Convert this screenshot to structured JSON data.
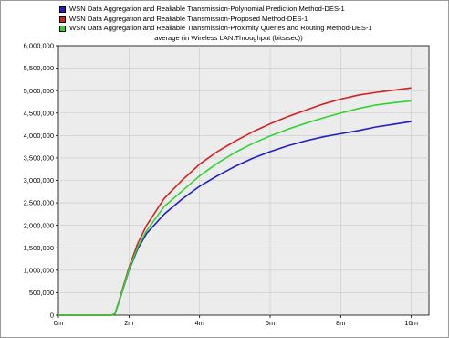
{
  "chart_data": {
    "type": "line",
    "title": "average (in Wireless LAN.Throughput (bits/sec))",
    "xlabel": "",
    "ylabel": "",
    "x_ticks": [
      "0m",
      "2m",
      "4m",
      "6m",
      "8m",
      "10m"
    ],
    "y_ticks": [
      "0",
      "500,000",
      "1,000,000",
      "1,500,000",
      "2,000,000",
      "2,500,000",
      "3,000,000",
      "3,500,000",
      "4,000,000",
      "4,500,000",
      "5,000,000",
      "5,500,000",
      "6,000,000"
    ],
    "xlim": [
      0,
      10.5
    ],
    "ylim": [
      0,
      6000000
    ],
    "grid": true,
    "legend_position": "top",
    "x": [
      0,
      1,
      1.5,
      1.6,
      1.7,
      1.8,
      2,
      2.25,
      2.5,
      3,
      3.5,
      4,
      4.5,
      5,
      5.5,
      6,
      6.5,
      7,
      7.5,
      8,
      8.5,
      9,
      9.5,
      10
    ],
    "series": [
      {
        "name": "WSN Data Aggregation and Realiable Transmission-Polynomial Prediction Method-DES-1",
        "color": "#1f1fc8",
        "values": [
          0,
          0,
          0,
          30000,
          250000,
          500000,
          1000000,
          1480000,
          1820000,
          2250000,
          2580000,
          2870000,
          3100000,
          3310000,
          3490000,
          3640000,
          3770000,
          3880000,
          3970000,
          4040000,
          4110000,
          4190000,
          4250000,
          4310000
        ]
      },
      {
        "name": "WSN Data Aggregation and Realiable Transmission-Proposed Method-DES-1",
        "color": "#d42020",
        "values": [
          0,
          0,
          0,
          30000,
          270000,
          540000,
          1060000,
          1600000,
          2000000,
          2600000,
          3000000,
          3360000,
          3640000,
          3870000,
          4080000,
          4260000,
          4420000,
          4560000,
          4700000,
          4810000,
          4900000,
          4960000,
          5010000,
          5060000
        ]
      },
      {
        "name": "WSN Data Aggregation and Realiable Transmission-Proximity Queries and Routing Method-DES-1",
        "color": "#2fd42f",
        "values": [
          0,
          0,
          0,
          30000,
          260000,
          510000,
          1020000,
          1520000,
          1880000,
          2420000,
          2760000,
          3100000,
          3380000,
          3620000,
          3820000,
          3990000,
          4140000,
          4270000,
          4390000,
          4500000,
          4600000,
          4680000,
          4730000,
          4770000
        ]
      }
    ]
  }
}
